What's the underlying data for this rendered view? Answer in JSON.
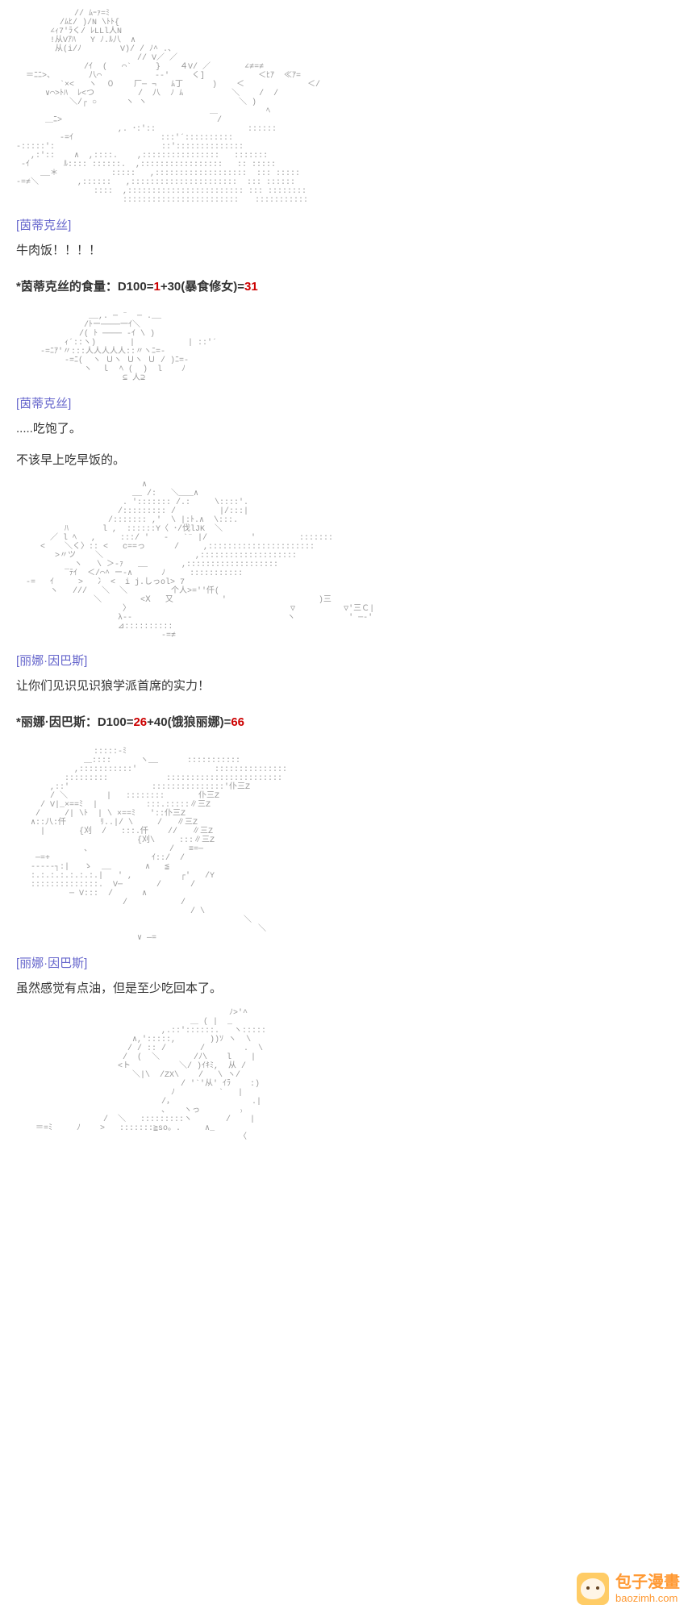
{
  "sections": [
    {
      "ascii_key": "ascii1",
      "speaker": "[茵蒂克丝]",
      "dialogue": "牛肉饭！！！！"
    }
  ],
  "roll1": {
    "prefix": "*茵蒂克丝的食量：D100=",
    "value": "1",
    "plus": "+30(暴食修女)=",
    "result": "31"
  },
  "section2": {
    "speaker": "[茵蒂克丝]",
    "dialogue1": ".....吃饱了。",
    "dialogue2": "不该早上吃早饭的。"
  },
  "section3": {
    "speaker": "[丽娜·因巴斯]",
    "dialogue": "让你们见识见识狼学派首席的实力！"
  },
  "roll2": {
    "prefix": "*丽娜·因巴斯：D100=",
    "value": "26",
    "plus": "+40(饿狼丽娜)=",
    "result": "66"
  },
  "section4": {
    "speaker": "[丽娜·因巴斯]",
    "dialogue": "虽然感觉有点油，但是至少吃回本了。"
  },
  "watermark": {
    "title": "包子漫畫",
    "url": "baozimh.com"
  },
  "colors": {
    "speaker_color": "#6666cc",
    "text_color": "#333333",
    "roll_highlight": "#cc0000",
    "ascii_color": "#999999",
    "watermark_bg": "#ffcc66",
    "watermark_text": "#ff9933"
  },
  "ascii_art": {
    "art1_height": 310,
    "art2_height": 130,
    "art3_height": 280,
    "art4_height": 380,
    "art5_height": 280
  }
}
